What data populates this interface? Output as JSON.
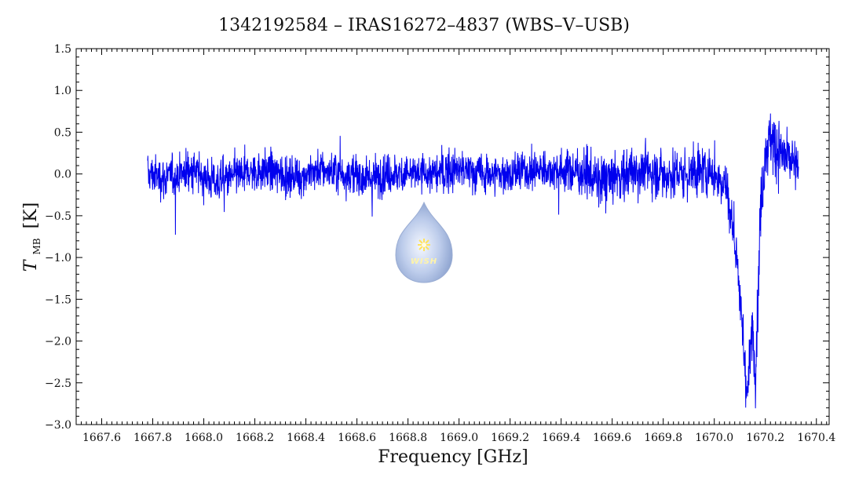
{
  "chart_data": {
    "type": "line",
    "title": "1342192584 – IRAS16272–4837 (WBS–V–USB)",
    "xlabel": "Frequency [GHz]",
    "ylabel": "T",
    "ylabel_subscript": "MB",
    "ylabel_unit": "[K]",
    "xlim": [
      1667.5,
      1670.45
    ],
    "ylim": [
      -3.0,
      1.5
    ],
    "x_ticks": [
      "1667.6",
      "1667.8",
      "1668.0",
      "1668.2",
      "1668.4",
      "1668.6",
      "1668.8",
      "1669.0",
      "1669.2",
      "1669.4",
      "1669.6",
      "1669.8",
      "1670.0",
      "1670.2",
      "1670.4"
    ],
    "y_ticks": [
      "1.5",
      "1.0",
      "0.5",
      "0.0",
      "−0.5",
      "−1.0",
      "−1.5",
      "−2.0",
      "−2.5",
      "−3.0"
    ],
    "grid": false,
    "legend": "none",
    "series": [
      {
        "color": "#0000ee",
        "x": [
          1667.78,
          1667.85,
          1667.95,
          1668.05,
          1668.15,
          1668.25,
          1668.35,
          1668.45,
          1668.55,
          1668.65,
          1668.72,
          1668.8,
          1668.9,
          1669.0,
          1669.1,
          1669.2,
          1669.3,
          1669.4,
          1669.5,
          1669.55,
          1669.6,
          1669.65,
          1669.7,
          1669.8,
          1669.9,
          1669.95,
          1670.0,
          1670.03,
          1670.05,
          1670.07,
          1670.09,
          1670.1,
          1670.11,
          1670.12,
          1670.13,
          1670.14,
          1670.15,
          1670.16,
          1670.17,
          1670.18,
          1670.2,
          1670.22,
          1670.25,
          1670.28,
          1670.3,
          1670.33
        ],
        "y": [
          0.0,
          -0.05,
          0.05,
          -0.1,
          0.0,
          0.05,
          -0.05,
          0.05,
          0.0,
          -0.05,
          0.0,
          0.0,
          0.0,
          0.05,
          0.0,
          0.0,
          0.05,
          0.05,
          0.0,
          -0.1,
          -0.05,
          0.0,
          0.05,
          0.0,
          0.0,
          0.05,
          0.0,
          -0.05,
          -0.2,
          -0.6,
          -1.0,
          -1.5,
          -1.9,
          -2.3,
          -2.7,
          -2.2,
          -1.8,
          -2.4,
          -1.6,
          -0.5,
          0.3,
          0.4,
          0.3,
          0.2,
          0.15,
          0.0
        ],
        "noise_rms": 0.2
      }
    ]
  },
  "watermark": {
    "text": "WISH"
  }
}
